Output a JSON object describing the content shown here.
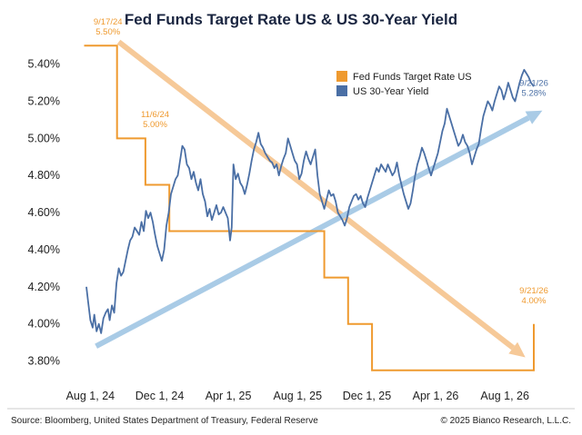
{
  "chart_data": {
    "type": "line",
    "title": "Fed Funds Target Rate US & US 30-Year Yield",
    "xlabel": "",
    "ylabel": "",
    "x_range": [
      "2024-07-01",
      "2026-10-31"
    ],
    "x_ticks": [
      {
        "date": "2024-08-01",
        "label": "Aug 1, 24"
      },
      {
        "date": "2024-12-01",
        "label": "Dec 1, 24"
      },
      {
        "date": "2025-04-01",
        "label": "Apr 1, 25"
      },
      {
        "date": "2025-08-01",
        "label": "Aug 1, 25"
      },
      {
        "date": "2025-12-01",
        "label": "Dec 1, 25"
      },
      {
        "date": "2026-04-01",
        "label": "Apr 1, 26"
      },
      {
        "date": "2026-08-01",
        "label": "Aug 1, 26"
      }
    ],
    "ylim": [
      3.7,
      5.55
    ],
    "y_ticks": [
      {
        "value": 3.8,
        "label": "3.80%"
      },
      {
        "value": 4.0,
        "label": "4.00%"
      },
      {
        "value": 4.2,
        "label": "4.20%"
      },
      {
        "value": 4.4,
        "label": "4.40%"
      },
      {
        "value": 4.6,
        "label": "4.60%"
      },
      {
        "value": 4.8,
        "label": "4.80%"
      },
      {
        "value": 5.0,
        "label": "5.00%"
      },
      {
        "value": 5.2,
        "label": "5.20%"
      },
      {
        "value": 5.4,
        "label": "5.40%"
      }
    ],
    "grid": false,
    "legend": "top-right",
    "series": [
      {
        "name": "Fed Funds Target Rate US",
        "color": "#ef9a2f",
        "step": true,
        "points": [
          [
            "2024-07-21",
            5.5
          ],
          [
            "2024-09-17",
            5.5
          ],
          [
            "2024-09-17",
            5.0
          ],
          [
            "2024-11-06",
            5.0
          ],
          [
            "2024-11-06",
            4.75
          ],
          [
            "2024-12-18",
            4.75
          ],
          [
            "2024-12-18",
            4.5
          ],
          [
            "2025-09-17",
            4.5
          ],
          [
            "2025-09-17",
            4.25
          ],
          [
            "2025-10-29",
            4.25
          ],
          [
            "2025-10-29",
            4.0
          ],
          [
            "2025-12-10",
            4.0
          ],
          [
            "2025-12-10",
            3.75
          ],
          [
            "2026-09-21",
            3.75
          ],
          [
            "2026-09-21",
            4.0
          ]
        ]
      },
      {
        "name": "US 30-Year Yield",
        "color": "#4a6fa5",
        "points": [
          [
            "2024-07-25",
            4.2
          ],
          [
            "2024-07-28",
            4.12
          ],
          [
            "2024-08-01",
            4.02
          ],
          [
            "2024-08-05",
            3.98
          ],
          [
            "2024-08-08",
            4.05
          ],
          [
            "2024-08-12",
            3.96
          ],
          [
            "2024-08-16",
            4.0
          ],
          [
            "2024-08-20",
            3.95
          ],
          [
            "2024-08-24",
            4.03
          ],
          [
            "2024-08-28",
            4.06
          ],
          [
            "2024-09-01",
            4.08
          ],
          [
            "2024-09-04",
            4.02
          ],
          [
            "2024-09-08",
            4.1
          ],
          [
            "2024-09-12",
            4.06
          ],
          [
            "2024-09-16",
            4.22
          ],
          [
            "2024-09-20",
            4.3
          ],
          [
            "2024-09-24",
            4.26
          ],
          [
            "2024-09-28",
            4.28
          ],
          [
            "2024-10-02",
            4.34
          ],
          [
            "2024-10-06",
            4.4
          ],
          [
            "2024-10-10",
            4.45
          ],
          [
            "2024-10-14",
            4.47
          ],
          [
            "2024-10-18",
            4.52
          ],
          [
            "2024-10-22",
            4.5
          ],
          [
            "2024-10-26",
            4.48
          ],
          [
            "2024-10-30",
            4.55
          ],
          [
            "2024-11-03",
            4.5
          ],
          [
            "2024-11-07",
            4.61
          ],
          [
            "2024-11-11",
            4.57
          ],
          [
            "2024-11-15",
            4.6
          ],
          [
            "2024-11-19",
            4.55
          ],
          [
            "2024-11-23",
            4.48
          ],
          [
            "2024-11-27",
            4.42
          ],
          [
            "2024-12-01",
            4.38
          ],
          [
            "2024-12-05",
            4.34
          ],
          [
            "2024-12-09",
            4.4
          ],
          [
            "2024-12-13",
            4.53
          ],
          [
            "2024-12-17",
            4.6
          ],
          [
            "2024-12-21",
            4.7
          ],
          [
            "2024-12-25",
            4.74
          ],
          [
            "2024-12-29",
            4.78
          ],
          [
            "2025-01-02",
            4.8
          ],
          [
            "2025-01-06",
            4.88
          ],
          [
            "2025-01-10",
            4.96
          ],
          [
            "2025-01-14",
            4.94
          ],
          [
            "2025-01-18",
            4.86
          ],
          [
            "2025-01-22",
            4.84
          ],
          [
            "2025-01-26",
            4.78
          ],
          [
            "2025-01-30",
            4.82
          ],
          [
            "2025-02-03",
            4.76
          ],
          [
            "2025-02-07",
            4.72
          ],
          [
            "2025-02-11",
            4.78
          ],
          [
            "2025-02-15",
            4.7
          ],
          [
            "2025-02-19",
            4.66
          ],
          [
            "2025-02-23",
            4.58
          ],
          [
            "2025-02-27",
            4.62
          ],
          [
            "2025-03-03",
            4.56
          ],
          [
            "2025-03-07",
            4.6
          ],
          [
            "2025-03-11",
            4.64
          ],
          [
            "2025-03-15",
            4.59
          ],
          [
            "2025-03-19",
            4.6
          ],
          [
            "2025-03-23",
            4.63
          ],
          [
            "2025-03-27",
            4.6
          ],
          [
            "2025-03-31",
            4.57
          ],
          [
            "2025-04-04",
            4.45
          ],
          [
            "2025-04-07",
            4.52
          ],
          [
            "2025-04-10",
            4.86
          ],
          [
            "2025-04-14",
            4.78
          ],
          [
            "2025-04-18",
            4.81
          ],
          [
            "2025-04-22",
            4.76
          ],
          [
            "2025-04-26",
            4.74
          ],
          [
            "2025-04-30",
            4.7
          ],
          [
            "2025-05-04",
            4.75
          ],
          [
            "2025-05-08",
            4.81
          ],
          [
            "2025-05-12",
            4.88
          ],
          [
            "2025-05-16",
            4.94
          ],
          [
            "2025-05-20",
            4.98
          ],
          [
            "2025-05-24",
            5.03
          ],
          [
            "2025-05-28",
            4.97
          ],
          [
            "2025-06-01",
            4.95
          ],
          [
            "2025-06-05",
            4.92
          ],
          [
            "2025-06-09",
            4.9
          ],
          [
            "2025-06-13",
            4.88
          ],
          [
            "2025-06-17",
            4.87
          ],
          [
            "2025-06-21",
            4.84
          ],
          [
            "2025-06-25",
            4.86
          ],
          [
            "2025-06-29",
            4.8
          ],
          [
            "2025-07-03",
            4.85
          ],
          [
            "2025-07-07",
            4.89
          ],
          [
            "2025-07-11",
            4.92
          ],
          [
            "2025-07-15",
            5.0
          ],
          [
            "2025-07-19",
            4.96
          ],
          [
            "2025-07-23",
            4.92
          ],
          [
            "2025-07-27",
            4.88
          ],
          [
            "2025-07-31",
            4.86
          ],
          [
            "2025-08-04",
            4.78
          ],
          [
            "2025-08-08",
            4.81
          ],
          [
            "2025-08-12",
            4.88
          ],
          [
            "2025-08-16",
            4.93
          ],
          [
            "2025-08-20",
            4.89
          ],
          [
            "2025-08-24",
            4.86
          ],
          [
            "2025-08-28",
            4.9
          ],
          [
            "2025-09-01",
            4.94
          ],
          [
            "2025-09-05",
            4.8
          ],
          [
            "2025-09-09",
            4.7
          ],
          [
            "2025-09-13",
            4.66
          ],
          [
            "2025-09-17",
            4.62
          ],
          [
            "2025-09-21",
            4.67
          ],
          [
            "2025-09-25",
            4.72
          ],
          [
            "2025-09-29",
            4.69
          ],
          [
            "2025-10-03",
            4.7
          ],
          [
            "2025-10-07",
            4.66
          ],
          [
            "2025-10-11",
            4.6
          ],
          [
            "2025-10-15",
            4.58
          ],
          [
            "2025-10-19",
            4.56
          ],
          [
            "2025-10-23",
            4.53
          ],
          [
            "2025-10-27",
            4.57
          ],
          [
            "2025-10-31",
            4.63
          ],
          [
            "2025-11-04",
            4.66
          ],
          [
            "2025-11-08",
            4.69
          ],
          [
            "2025-11-12",
            4.7
          ],
          [
            "2025-11-16",
            4.67
          ],
          [
            "2025-11-20",
            4.69
          ],
          [
            "2025-11-24",
            4.65
          ],
          [
            "2025-11-28",
            4.63
          ],
          [
            "2025-12-02",
            4.68
          ],
          [
            "2025-12-06",
            4.72
          ],
          [
            "2025-12-10",
            4.76
          ],
          [
            "2025-12-14",
            4.8
          ],
          [
            "2025-12-18",
            4.84
          ],
          [
            "2025-12-22",
            4.82
          ],
          [
            "2025-12-26",
            4.86
          ],
          [
            "2025-12-30",
            4.84
          ],
          [
            "2026-01-03",
            4.82
          ],
          [
            "2026-01-07",
            4.86
          ],
          [
            "2026-01-11",
            4.83
          ],
          [
            "2026-01-15",
            4.8
          ],
          [
            "2026-01-19",
            4.82
          ],
          [
            "2026-01-23",
            4.87
          ],
          [
            "2026-01-27",
            4.8
          ],
          [
            "2026-01-31",
            4.75
          ],
          [
            "2026-02-04",
            4.7
          ],
          [
            "2026-02-08",
            4.66
          ],
          [
            "2026-02-12",
            4.62
          ],
          [
            "2026-02-16",
            4.65
          ],
          [
            "2026-02-20",
            4.72
          ],
          [
            "2026-02-24",
            4.8
          ],
          [
            "2026-02-28",
            4.86
          ],
          [
            "2026-03-04",
            4.9
          ],
          [
            "2026-03-08",
            4.95
          ],
          [
            "2026-03-12",
            4.92
          ],
          [
            "2026-03-16",
            4.88
          ],
          [
            "2026-03-20",
            4.84
          ],
          [
            "2026-03-24",
            4.8
          ],
          [
            "2026-03-28",
            4.84
          ],
          [
            "2026-04-01",
            4.88
          ],
          [
            "2026-04-05",
            4.92
          ],
          [
            "2026-04-09",
            4.98
          ],
          [
            "2026-04-13",
            5.04
          ],
          [
            "2026-04-17",
            5.08
          ],
          [
            "2026-04-21",
            5.16
          ],
          [
            "2026-04-25",
            5.12
          ],
          [
            "2026-04-29",
            5.08
          ],
          [
            "2026-05-03",
            5.04
          ],
          [
            "2026-05-07",
            5.0
          ],
          [
            "2026-05-11",
            4.96
          ],
          [
            "2026-05-15",
            4.98
          ],
          [
            "2026-05-19",
            5.02
          ],
          [
            "2026-05-23",
            4.98
          ],
          [
            "2026-05-27",
            4.96
          ],
          [
            "2026-05-31",
            4.92
          ],
          [
            "2026-06-04",
            4.86
          ],
          [
            "2026-06-08",
            4.9
          ],
          [
            "2026-06-12",
            4.94
          ],
          [
            "2026-06-16",
            4.97
          ],
          [
            "2026-06-20",
            5.05
          ],
          [
            "2026-06-24",
            5.12
          ],
          [
            "2026-06-28",
            5.16
          ],
          [
            "2026-07-02",
            5.2
          ],
          [
            "2026-07-06",
            5.18
          ],
          [
            "2026-07-10",
            5.15
          ],
          [
            "2026-07-14",
            5.2
          ],
          [
            "2026-07-18",
            5.24
          ],
          [
            "2026-07-22",
            5.28
          ],
          [
            "2026-07-26",
            5.26
          ],
          [
            "2026-07-30",
            5.21
          ],
          [
            "2026-08-03",
            5.25
          ],
          [
            "2026-08-07",
            5.3
          ],
          [
            "2026-08-11",
            5.26
          ],
          [
            "2026-08-15",
            5.22
          ],
          [
            "2026-08-19",
            5.2
          ],
          [
            "2026-08-23",
            5.25
          ],
          [
            "2026-08-27",
            5.3
          ],
          [
            "2026-08-31",
            5.34
          ],
          [
            "2026-09-04",
            5.37
          ],
          [
            "2026-09-08",
            5.35
          ],
          [
            "2026-09-12",
            5.33
          ],
          [
            "2026-09-16",
            5.3
          ],
          [
            "2026-09-21",
            5.28
          ]
        ]
      }
    ],
    "annotations": [
      {
        "id": "ann-ff-1",
        "date_label": "9/17/24",
        "value_label": "5.50%",
        "color": "#ef9a2f",
        "x": "2024-09-01",
        "y": 5.56
      },
      {
        "id": "ann-ff-2",
        "date_label": "11/6/24",
        "value_label": "5.00%",
        "color": "#ef9a2f",
        "x": "2024-11-23",
        "y": 5.06
      },
      {
        "id": "ann-yld",
        "date_label": "9/21/26",
        "value_label": "5.28%",
        "color": "#4a6fa5",
        "x": "2026-09-21",
        "y": 5.23
      },
      {
        "id": "ann-ff-3",
        "date_label": "9/21/26",
        "value_label": "4.00%",
        "color": "#ef9a2f",
        "x": "2026-09-21",
        "y": 4.11
      }
    ],
    "trend_arrows": [
      {
        "id": "arrow-orange-down",
        "color": "#f6c998",
        "from": [
          "2024-09-20",
          5.52
        ],
        "to": [
          "2026-09-06",
          3.82
        ]
      },
      {
        "id": "arrow-blue-up",
        "color": "#a9cbe6",
        "from": [
          "2024-08-11",
          3.88
        ],
        "to": [
          "2026-10-06",
          5.15
        ]
      }
    ]
  },
  "footer": {
    "source": "Source: Bloomberg, United States Department of Treasury, Federal Reserve",
    "copyright": "© 2025 Bianco Research, L.L.C."
  }
}
